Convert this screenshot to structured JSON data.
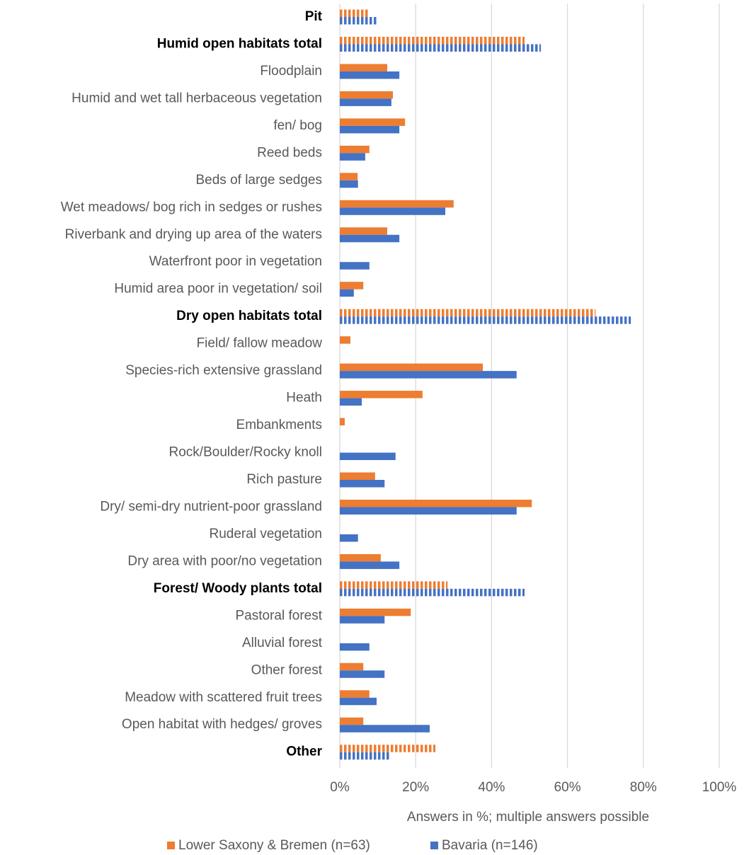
{
  "chart_data": {
    "type": "hbar",
    "categories": [
      "Pit",
      "Humid open habitats total",
      "Floodplain",
      "Humid and wet tall herbaceous vegetation",
      "fen/ bog",
      "Reed beds",
      "Beds of large sedges",
      "Wet meadows/ bog rich in sedges or rushes",
      "Riverbank and drying up area of the waters",
      "Waterfront poor in vegetation",
      "Humid area poor in vegetation/ soil",
      "Dry open habitats total",
      "Field/ fallow meadow",
      "Species-rich extensive grassland",
      "Heath",
      "Embankments",
      "Rock/Boulder/Rocky knoll",
      "Rich pasture",
      "Dry/ semi-dry nutrient-poor grassland",
      "Ruderal vegetation",
      "Dry area with poor/no vegetation",
      "Forest/ Woody plants total",
      "Pastoral forest",
      "Alluvial forest",
      "Other forest",
      "Meadow with scattered fruit trees",
      "Open habitat with hedges/ groves",
      "Other"
    ],
    "series": [
      {
        "name": "Lower Saxony & Bremen (n=63)",
        "color": "#ED7D31",
        "values": [
          7.5,
          48.7,
          12.5,
          14,
          17.2,
          7.8,
          4.7,
          30,
          12.5,
          0,
          6.2,
          67.4,
          2.8,
          37.7,
          21.8,
          1.3,
          0,
          9.3,
          50.6,
          0,
          10.8,
          28.4,
          18.7,
          0,
          6.2,
          7.8,
          6.2,
          25.2
        ]
      },
      {
        "name": "Bavaria (n=146)",
        "color": "#4472C4",
        "values": [
          9.7,
          53,
          15.7,
          13.6,
          15.7,
          6.7,
          4.8,
          27.8,
          15.7,
          7.8,
          3.7,
          76.7,
          0,
          46.6,
          5.8,
          0,
          14.7,
          11.8,
          46.6,
          4.8,
          15.7,
          48.7,
          11.8,
          7.8,
          11.8,
          9.7,
          23.7,
          13
        ]
      }
    ],
    "emphasized_categories": [
      0,
      1,
      11,
      21,
      27
    ],
    "x_label": "Answers in %; multiple answers possible",
    "xlim": [
      0,
      100
    ],
    "xticks": [
      {
        "value": 0,
        "label": "0%"
      },
      {
        "value": 20,
        "label": "20%"
      },
      {
        "value": 40,
        "label": "40%"
      },
      {
        "value": 60,
        "label": "60%"
      },
      {
        "value": 80,
        "label": "80%"
      },
      {
        "value": 100,
        "label": "100%"
      }
    ],
    "grid": true,
    "legend": "bottom"
  }
}
